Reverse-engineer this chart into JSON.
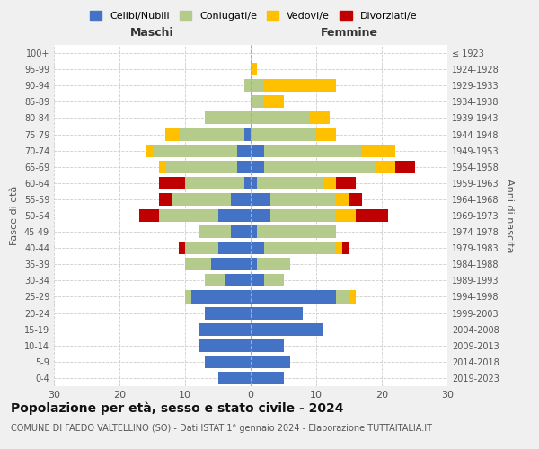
{
  "age_groups": [
    "0-4",
    "5-9",
    "10-14",
    "15-19",
    "20-24",
    "25-29",
    "30-34",
    "35-39",
    "40-44",
    "45-49",
    "50-54",
    "55-59",
    "60-64",
    "65-69",
    "70-74",
    "75-79",
    "80-84",
    "85-89",
    "90-94",
    "95-99",
    "100+"
  ],
  "birth_years": [
    "2019-2023",
    "2014-2018",
    "2009-2013",
    "2004-2008",
    "1999-2003",
    "1994-1998",
    "1989-1993",
    "1984-1988",
    "1979-1983",
    "1974-1978",
    "1969-1973",
    "1964-1968",
    "1959-1963",
    "1954-1958",
    "1949-1953",
    "1944-1948",
    "1939-1943",
    "1934-1938",
    "1929-1933",
    "1924-1928",
    "≤ 1923"
  ],
  "colors": {
    "celibi": "#4472c4",
    "coniugati": "#b5cb8b",
    "vedovi": "#ffc000",
    "divorziati": "#c00000"
  },
  "males": {
    "celibi": [
      5,
      7,
      8,
      8,
      7,
      9,
      4,
      6,
      5,
      3,
      5,
      3,
      1,
      2,
      2,
      1,
      0,
      0,
      0,
      0,
      0
    ],
    "coniugati": [
      0,
      0,
      0,
      0,
      0,
      1,
      3,
      4,
      5,
      5,
      9,
      9,
      9,
      11,
      13,
      10,
      7,
      0,
      1,
      0,
      0
    ],
    "vedovi": [
      0,
      0,
      0,
      0,
      0,
      0,
      0,
      0,
      0,
      0,
      0,
      0,
      0,
      1,
      1,
      2,
      0,
      0,
      0,
      0,
      0
    ],
    "divorziati": [
      0,
      0,
      0,
      0,
      0,
      0,
      0,
      0,
      1,
      0,
      3,
      2,
      4,
      0,
      0,
      0,
      0,
      0,
      0,
      0,
      0
    ]
  },
  "females": {
    "nubili": [
      5,
      6,
      5,
      11,
      8,
      13,
      2,
      1,
      2,
      1,
      3,
      3,
      1,
      2,
      2,
      0,
      0,
      0,
      0,
      0,
      0
    ],
    "coniugate": [
      0,
      0,
      0,
      0,
      0,
      2,
      3,
      5,
      11,
      12,
      10,
      10,
      10,
      17,
      15,
      10,
      9,
      2,
      2,
      0,
      0
    ],
    "vedove": [
      0,
      0,
      0,
      0,
      0,
      1,
      0,
      0,
      1,
      0,
      3,
      2,
      2,
      3,
      5,
      3,
      3,
      3,
      11,
      1,
      0
    ],
    "divorziate": [
      0,
      0,
      0,
      0,
      0,
      0,
      0,
      0,
      1,
      0,
      5,
      2,
      3,
      3,
      0,
      0,
      0,
      0,
      0,
      0,
      0
    ]
  },
  "xlim": [
    -30,
    30
  ],
  "title": "Popolazione per età, sesso e stato civile - 2024",
  "subtitle": "COMUNE DI FAEDO VALTELLINO (SO) - Dati ISTAT 1° gennaio 2024 - Elaborazione TUTTAITALIA.IT",
  "ylabel_left": "Fasce di età",
  "ylabel_right": "Anni di nascita",
  "xlabel_left": "Maschi",
  "xlabel_right": "Femmine",
  "legend_labels": [
    "Celibi/Nubili",
    "Coniugati/e",
    "Vedovi/e",
    "Divorziati/e"
  ],
  "bg_color": "#f0f0f0",
  "plot_bg_color": "#ffffff",
  "grid_color": "#cccccc",
  "title_fontsize": 10,
  "subtitle_fontsize": 7
}
